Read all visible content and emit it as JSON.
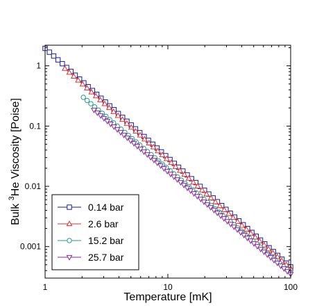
{
  "chart_data": {
    "type": "line",
    "xscale": "log",
    "yscale": "log",
    "xlim": [
      1,
      100
    ],
    "ylim": [
      0.0003,
      2.2
    ],
    "xlabel": "Temperature [mK]",
    "ylabel_prefix": "Bulk ",
    "ylabel_sup": "3",
    "ylabel_suffix": "He Viscosity [Poise]",
    "x_ticks": [
      {
        "value": 1,
        "label": "1"
      },
      {
        "value": 10,
        "label": "10"
      },
      {
        "value": 100,
        "label": "100"
      }
    ],
    "y_ticks": [
      {
        "value": 0.001,
        "label": "0.001"
      },
      {
        "value": 0.01,
        "label": "0.01"
      },
      {
        "value": 0.1,
        "label": "0.1"
      },
      {
        "value": 1,
        "label": "1"
      }
    ],
    "legend_position": "bottom-left",
    "series": [
      {
        "name": "0.14 bar",
        "color": "#1a1a99",
        "marker": "square",
        "x_start": 1.0,
        "x_end": 100,
        "y_start": 1.95,
        "y_end": 0.00046,
        "n_points": 58
      },
      {
        "name": "2.6 bar",
        "color": "#e03030",
        "marker": "triangle-up",
        "x_start": 1.45,
        "x_end": 100,
        "y_start": 0.9,
        "y_end": 0.00043,
        "n_points": 52
      },
      {
        "name": "15.2 bar",
        "color": "#2a9a8a",
        "marker": "circle",
        "x_start": 2.05,
        "x_end": 100,
        "y_start": 0.3,
        "y_end": 0.00037,
        "n_points": 56
      },
      {
        "name": "25.7 bar",
        "color": "#8a2aa0",
        "marker": "triangle-down",
        "x_start": 2.5,
        "x_end": 100,
        "y_start": 0.185,
        "y_end": 0.00035,
        "n_points": 60
      }
    ]
  }
}
